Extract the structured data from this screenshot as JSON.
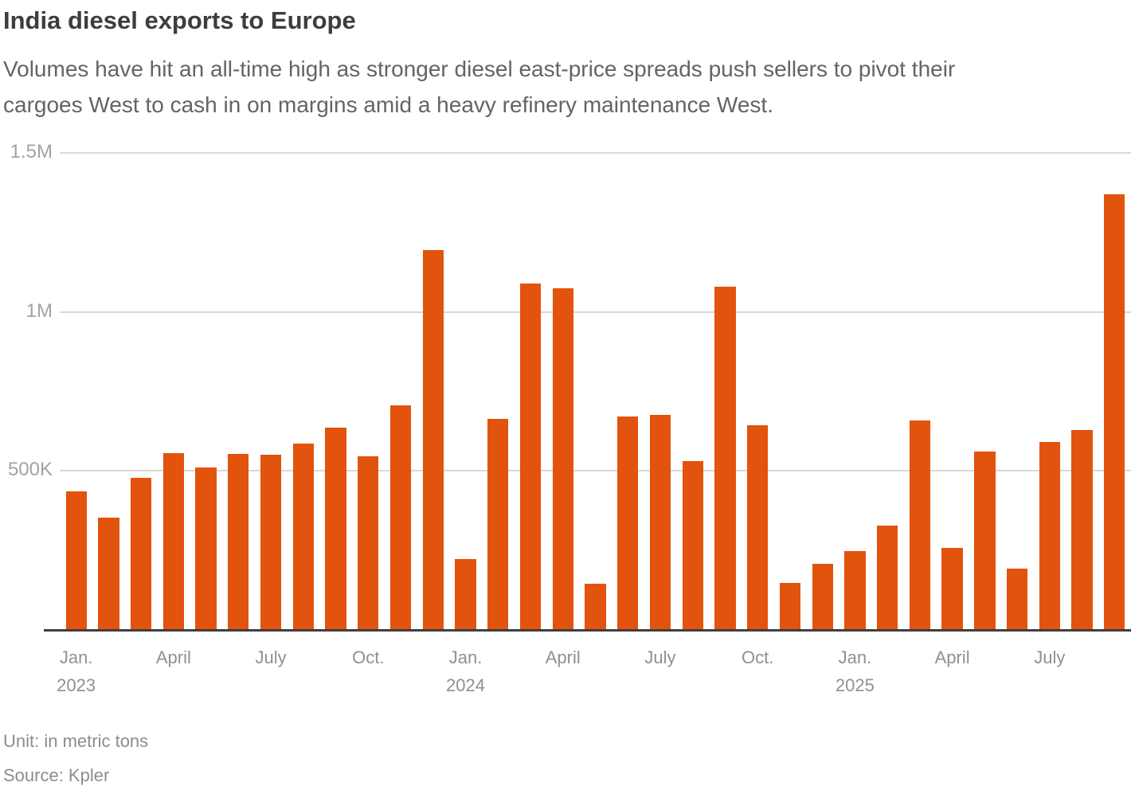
{
  "chart_data": {
    "type": "bar",
    "title": "India diesel exports to Europe",
    "subtitle_lines": [
      "Volumes have hit an all-time high as stronger diesel east-price spreads push sellers to pivot their",
      "cargoes West to cash in on margins amid a heavy refinery maintenance West."
    ],
    "unit_note": "Unit: in metric tons",
    "source": "Source: Kpler",
    "ylabel": "",
    "xlabel": "",
    "ylim": [
      0,
      1500000
    ],
    "grid": "horizontal",
    "legend": "none",
    "categories": [
      "Jan. 2023",
      "Feb. 2023",
      "Mar. 2023",
      "Apr. 2023",
      "May 2023",
      "Jun. 2023",
      "Jul. 2023",
      "Aug. 2023",
      "Sep. 2023",
      "Oct. 2023",
      "Nov. 2023",
      "Dec. 2023",
      "Jan. 2024",
      "Feb. 2024",
      "Mar. 2024",
      "Apr. 2024",
      "May 2024",
      "Jun. 2024",
      "Jul. 2024",
      "Aug. 2024",
      "Sep. 2024",
      "Oct. 2024",
      "Nov. 2024",
      "Dec. 2024",
      "Jan. 2025",
      "Feb. 2025",
      "Mar. 2025",
      "Apr. 2025",
      "May 2025",
      "Jun. 2025",
      "Jul. 2025",
      "Aug. 2025",
      "Sep. 2025"
    ],
    "values": [
      435000,
      352000,
      478000,
      556000,
      512000,
      553000,
      551000,
      586000,
      637000,
      546000,
      707000,
      1195000,
      222000,
      663000,
      1090000,
      1075000,
      144000,
      670000,
      676000,
      530000,
      1079000,
      644000,
      147000,
      207000,
      248000,
      329000,
      659000,
      258000,
      561000,
      192000,
      592000,
      629000,
      1371000
    ],
    "y_ticks": [
      {
        "value": 1500000,
        "label": "1.5M"
      },
      {
        "value": 1000000,
        "label": "1M"
      },
      {
        "value": 500000,
        "label": "500K"
      }
    ],
    "x_ticks": [
      {
        "bar": 0,
        "line1": "Jan.",
        "line2": "2023"
      },
      {
        "bar": 3,
        "line1": "April"
      },
      {
        "bar": 6,
        "line1": "July"
      },
      {
        "bar": 9,
        "line1": "Oct."
      },
      {
        "bar": 12,
        "line1": "Jan.",
        "line2": "2024"
      },
      {
        "bar": 15,
        "line1": "April"
      },
      {
        "bar": 18,
        "line1": "July"
      },
      {
        "bar": 21,
        "line1": "Oct."
      },
      {
        "bar": 24,
        "line1": "Jan.",
        "line2": "2025"
      },
      {
        "bar": 27,
        "line1": "April"
      },
      {
        "bar": 30,
        "line1": "July"
      }
    ],
    "colors": {
      "bar": "#e2530e",
      "gridline": "#d8d8d8",
      "baseline": "#3f3f3f",
      "background": "#ffffff"
    }
  }
}
